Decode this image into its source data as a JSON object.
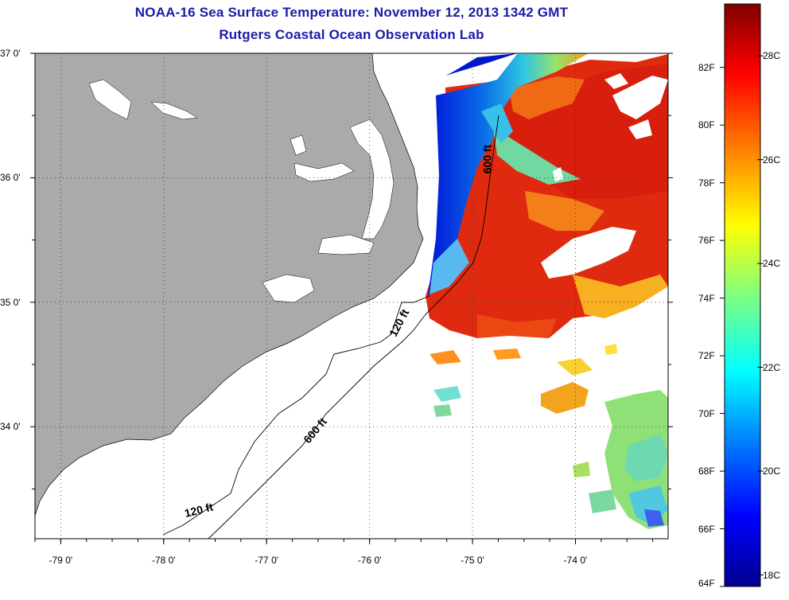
{
  "title": {
    "line1": "NOAA-16 Sea Surface Temperature:  November 12, 2013 1342 GMT",
    "line2": "Rutgers Coastal Ocean Observation Lab"
  },
  "latitude_labels": [
    {
      "lat": 37,
      "label": "37 0'"
    },
    {
      "lat": 36,
      "label": "36 0'"
    },
    {
      "lat": 35,
      "label": "35 0'"
    },
    {
      "lat": 34,
      "label": "34 0'"
    }
  ],
  "longitude_labels": [
    {
      "lon": -79,
      "label": "-79 0'"
    },
    {
      "lon": -78,
      "label": "-78 0'"
    },
    {
      "lon": -77,
      "label": "-77 0'"
    },
    {
      "lon": -76,
      "label": "-76 0'"
    },
    {
      "lon": -75,
      "label": "-75 0'"
    },
    {
      "lon": -74,
      "label": "-74 0'"
    }
  ],
  "map_extent": {
    "lon_min": -79.25,
    "lon_max": -73.1,
    "lat_min": 33.1,
    "lat_max": 37.0
  },
  "contour_labels": [
    {
      "text": "600 ft",
      "lon": -74.82,
      "lat": 36.15,
      "rotate": -90
    },
    {
      "text": "120 ft",
      "lon": -75.68,
      "lat": 34.82,
      "rotate": -62
    },
    {
      "text": "600 ft",
      "lon": -76.5,
      "lat": 33.95,
      "rotate": -50
    },
    {
      "text": "120 ft",
      "lon": -77.65,
      "lat": 33.3,
      "rotate": -14
    }
  ],
  "colorbar": {
    "fahrenheit": [
      {
        "value": 82,
        "label": "82F"
      },
      {
        "value": 80,
        "label": "80F"
      },
      {
        "value": 78,
        "label": "78F"
      },
      {
        "value": 76,
        "label": "76F"
      },
      {
        "value": 74,
        "label": "74F"
      },
      {
        "value": 72,
        "label": "72F"
      },
      {
        "value": 70,
        "label": "70F"
      },
      {
        "value": 68,
        "label": "68F"
      },
      {
        "value": 66,
        "label": "66F"
      },
      {
        "value": 64,
        "label": "64F"
      }
    ],
    "celsius": [
      {
        "value": 28,
        "label": "28C"
      },
      {
        "value": 26,
        "label": "26C"
      },
      {
        "value": 24,
        "label": "24C"
      },
      {
        "value": 22,
        "label": "22C"
      },
      {
        "value": 20,
        "label": "20C"
      },
      {
        "value": 18,
        "label": "18C"
      }
    ],
    "range_f": [
      64,
      84.2
    ],
    "colors": [
      "#00008f",
      "#0000ff",
      "#0080ff",
      "#00ffff",
      "#80ff80",
      "#ffff00",
      "#ff8000",
      "#ff0000",
      "#800000"
    ]
  },
  "colors": {
    "land": "#aaaaaa",
    "title": "#1b1ba8"
  }
}
